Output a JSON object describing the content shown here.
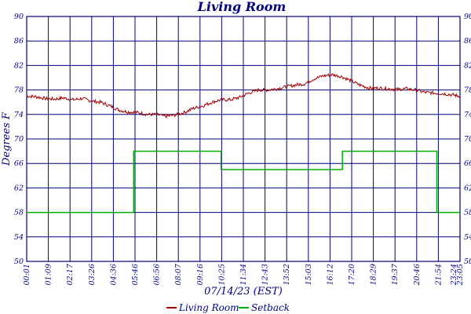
{
  "chart_data": {
    "type": "line",
    "title": "Living Room",
    "xlabel": "07/14/23 (EST)",
    "ylabel": "Degrees F",
    "ylim": [
      50,
      90
    ],
    "y_ticks": [
      "90",
      "86",
      "82",
      "78",
      "74",
      "70",
      "66",
      "62",
      "58",
      "54",
      "50"
    ],
    "x_ticks": [
      "00:01",
      "01:09",
      "02:17",
      "03:26",
      "04:36",
      "05:46",
      "06:56",
      "08:07",
      "09:16",
      "10:25",
      "11:34",
      "12:43",
      "13:52",
      "15:03",
      "16:12",
      "17:20",
      "18:29",
      "19:37",
      "20:46",
      "21:54",
      "23:05",
      "23:24"
    ],
    "grid": true,
    "legend_position": "bottom",
    "colors": {
      "Living Room": "#a00000",
      "Setback": "#00b000"
    },
    "series": [
      {
        "name": "Living Room",
        "x_hours": [
          0.0,
          0.5,
          1.0,
          1.5,
          2.0,
          2.5,
          3.0,
          3.5,
          4.0,
          4.5,
          5.0,
          5.5,
          6.0,
          6.5,
          7.0,
          7.5,
          8.0,
          8.5,
          9.0,
          9.5,
          10.0,
          10.5,
          11.0,
          11.5,
          12.0,
          12.5,
          13.0,
          13.5,
          14.0,
          14.5,
          15.0,
          15.5,
          16.0,
          16.5,
          17.0,
          17.5,
          18.0,
          18.5,
          19.0,
          19.5,
          20.0,
          20.5,
          21.0,
          21.5,
          22.0,
          22.5,
          23.0,
          23.4
        ],
        "values": [
          77.0,
          76.9,
          76.6,
          76.5,
          76.7,
          76.4,
          76.6,
          76.2,
          76.0,
          75.4,
          74.7,
          74.4,
          74.3,
          74.0,
          74.0,
          73.7,
          73.9,
          74.3,
          75.0,
          75.4,
          76.0,
          76.4,
          76.4,
          76.8,
          77.5,
          78.0,
          78.0,
          78.2,
          78.5,
          78.8,
          79.0,
          79.8,
          80.3,
          80.5,
          80.2,
          79.5,
          78.8,
          78.3,
          78.3,
          78.2,
          78.1,
          78.2,
          78.0,
          77.6,
          77.5,
          77.4,
          77.2,
          77.0
        ]
      },
      {
        "name": "Setback",
        "x_hours": [
          0.0,
          5.78,
          5.78,
          10.5,
          10.5,
          17.05,
          17.05,
          22.15,
          22.15,
          23.4
        ],
        "values": [
          58,
          58,
          68,
          68,
          65,
          65,
          68,
          68,
          58,
          58
        ]
      }
    ]
  }
}
